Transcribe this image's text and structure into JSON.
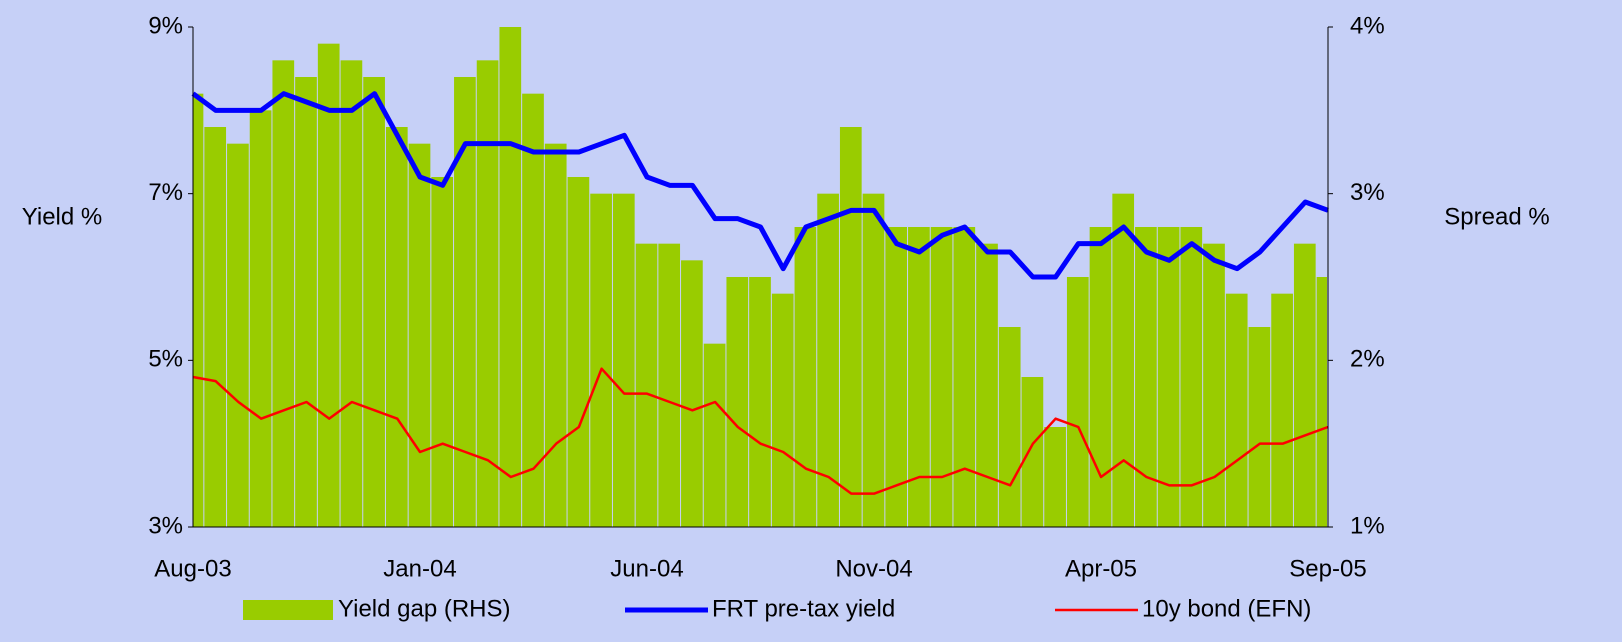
{
  "chart_data": {
    "type": "bar-line",
    "y_label": "Yield %",
    "y2_label": "Spread %",
    "categories": [
      "Aug-03",
      null,
      null,
      null,
      null,
      null,
      null,
      null,
      null,
      null,
      "Jan-04",
      null,
      null,
      null,
      null,
      null,
      null,
      null,
      null,
      null,
      "Jun-04",
      null,
      null,
      null,
      null,
      null,
      null,
      null,
      null,
      null,
      "Nov-04",
      null,
      null,
      null,
      null,
      null,
      null,
      null,
      null,
      null,
      "Apr-05",
      null,
      null,
      null,
      null,
      null,
      null,
      null,
      null,
      null,
      "Sep-05"
    ],
    "series": [
      {
        "name": "Yield gap (RHS)",
        "type": "bar",
        "axis": "y2",
        "color": "#99cc00",
        "values": [
          3.6,
          3.4,
          3.3,
          3.5,
          3.8,
          3.7,
          3.9,
          3.8,
          3.7,
          3.4,
          3.3,
          3.1,
          3.7,
          3.8,
          4.0,
          3.6,
          3.3,
          3.1,
          3.0,
          3.0,
          2.7,
          2.7,
          2.6,
          2.1,
          2.5,
          2.5,
          2.4,
          2.8,
          3.0,
          3.4,
          3.0,
          2.8,
          2.8,
          2.8,
          2.8,
          2.7,
          2.2,
          1.9,
          1.6,
          2.5,
          2.8,
          3.0,
          2.8,
          2.8,
          2.8,
          2.7,
          2.4,
          2.2,
          2.4,
          2.7,
          2.5
        ]
      },
      {
        "name": "FRT pre-tax yield",
        "type": "line",
        "color": "#0000ff",
        "values": [
          8.2,
          8.0,
          8.0,
          8.0,
          8.2,
          8.1,
          8.0,
          8.0,
          8.2,
          7.7,
          7.2,
          7.1,
          7.6,
          7.6,
          7.6,
          7.5,
          7.5,
          7.5,
          7.6,
          7.7,
          7.2,
          7.1,
          7.1,
          6.7,
          6.7,
          6.6,
          6.1,
          6.6,
          6.7,
          6.8,
          6.8,
          6.4,
          6.3,
          6.5,
          6.6,
          6.3,
          6.3,
          6.0,
          6.0,
          6.4,
          6.4,
          6.6,
          6.3,
          6.2,
          6.4,
          6.2,
          6.1,
          6.3,
          6.6,
          6.9,
          6.8
        ]
      },
      {
        "name": "10y bond (EFN)",
        "type": "line",
        "color": "#ff0000",
        "values": [
          4.8,
          4.75,
          4.5,
          4.3,
          4.4,
          4.5,
          4.3,
          4.5,
          4.4,
          4.3,
          3.9,
          4.0,
          3.9,
          3.8,
          3.6,
          3.7,
          4.0,
          4.2,
          4.9,
          4.6,
          4.6,
          4.5,
          4.4,
          4.5,
          4.2,
          4.0,
          3.9,
          3.7,
          3.6,
          3.4,
          3.4,
          3.5,
          3.6,
          3.6,
          3.7,
          3.6,
          3.5,
          4.0,
          4.3,
          4.2,
          3.6,
          3.8,
          3.6,
          3.5,
          3.5,
          3.6,
          3.8,
          4.0,
          4.0,
          4.1,
          4.2
        ]
      }
    ],
    "ylim": [
      3,
      9
    ],
    "yticks": [
      {
        "value": 3,
        "label": "3%"
      },
      {
        "value": 5,
        "label": "5%"
      },
      {
        "value": 7,
        "label": "7%"
      },
      {
        "value": 9,
        "label": "9%"
      }
    ],
    "y2lim": [
      1,
      4
    ],
    "y2ticks": [
      {
        "value": 1,
        "label": "1%"
      },
      {
        "value": 2,
        "label": "2%"
      },
      {
        "value": 3,
        "label": "3%"
      },
      {
        "value": 4,
        "label": "4%"
      }
    ],
    "legend": "bottom"
  }
}
